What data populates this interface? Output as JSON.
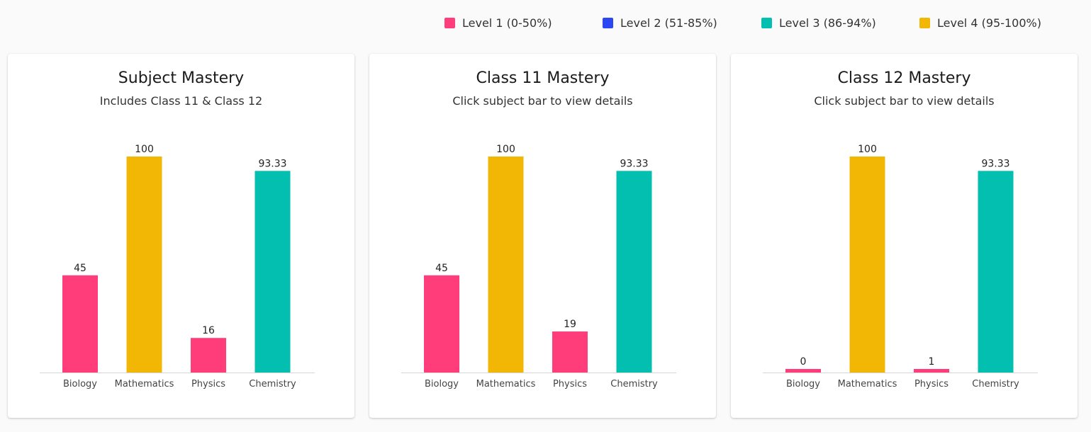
{
  "legend": [
    {
      "label": "Level 1 (0-50%)",
      "color": "#ff3d7a"
    },
    {
      "label": "Level 2 (51-85%)",
      "color": "#2b47f2"
    },
    {
      "label": "Level 3 (86-94%)",
      "color": "#02bfb0"
    },
    {
      "label": "Level 4 (95-100%)",
      "color": "#f2b705"
    }
  ],
  "cards": [
    {
      "title": "Subject Mastery",
      "subtitle": "Includes Class 11 & Class 12"
    },
    {
      "title": "Class 11 Mastery",
      "subtitle": "Click subject bar to view details"
    },
    {
      "title": "Class 12 Mastery",
      "subtitle": "Click subject bar to view details"
    }
  ],
  "chart_data": [
    {
      "type": "bar",
      "title": "Subject Mastery",
      "subtitle": "Includes Class 11 & Class 12",
      "categories": [
        "Biology",
        "Mathematics",
        "Physics",
        "Chemistry"
      ],
      "values": [
        45,
        100,
        16,
        93.33
      ],
      "value_labels": [
        "45",
        "100",
        "16",
        "93.33"
      ],
      "colors": [
        "#ff3d7a",
        "#f2b705",
        "#ff3d7a",
        "#02bfb0"
      ],
      "ylim": [
        0,
        100
      ]
    },
    {
      "type": "bar",
      "title": "Class 11 Mastery",
      "subtitle": "Click subject bar to view details",
      "categories": [
        "Biology",
        "Mathematics",
        "Physics",
        "Chemistry"
      ],
      "values": [
        45,
        100,
        19,
        93.33
      ],
      "value_labels": [
        "45",
        "100",
        "19",
        "93.33"
      ],
      "colors": [
        "#ff3d7a",
        "#f2b705",
        "#ff3d7a",
        "#02bfb0"
      ],
      "ylim": [
        0,
        100
      ]
    },
    {
      "type": "bar",
      "title": "Class 12 Mastery",
      "subtitle": "Click subject bar to view details",
      "categories": [
        "Biology",
        "Mathematics",
        "Physics",
        "Chemistry"
      ],
      "values": [
        0,
        100,
        1,
        93.33
      ],
      "value_labels": [
        "0",
        "100",
        "1",
        "93.33"
      ],
      "colors": [
        "#ff3d7a",
        "#f2b705",
        "#ff3d7a",
        "#02bfb0"
      ],
      "ylim": [
        0,
        100
      ]
    }
  ]
}
